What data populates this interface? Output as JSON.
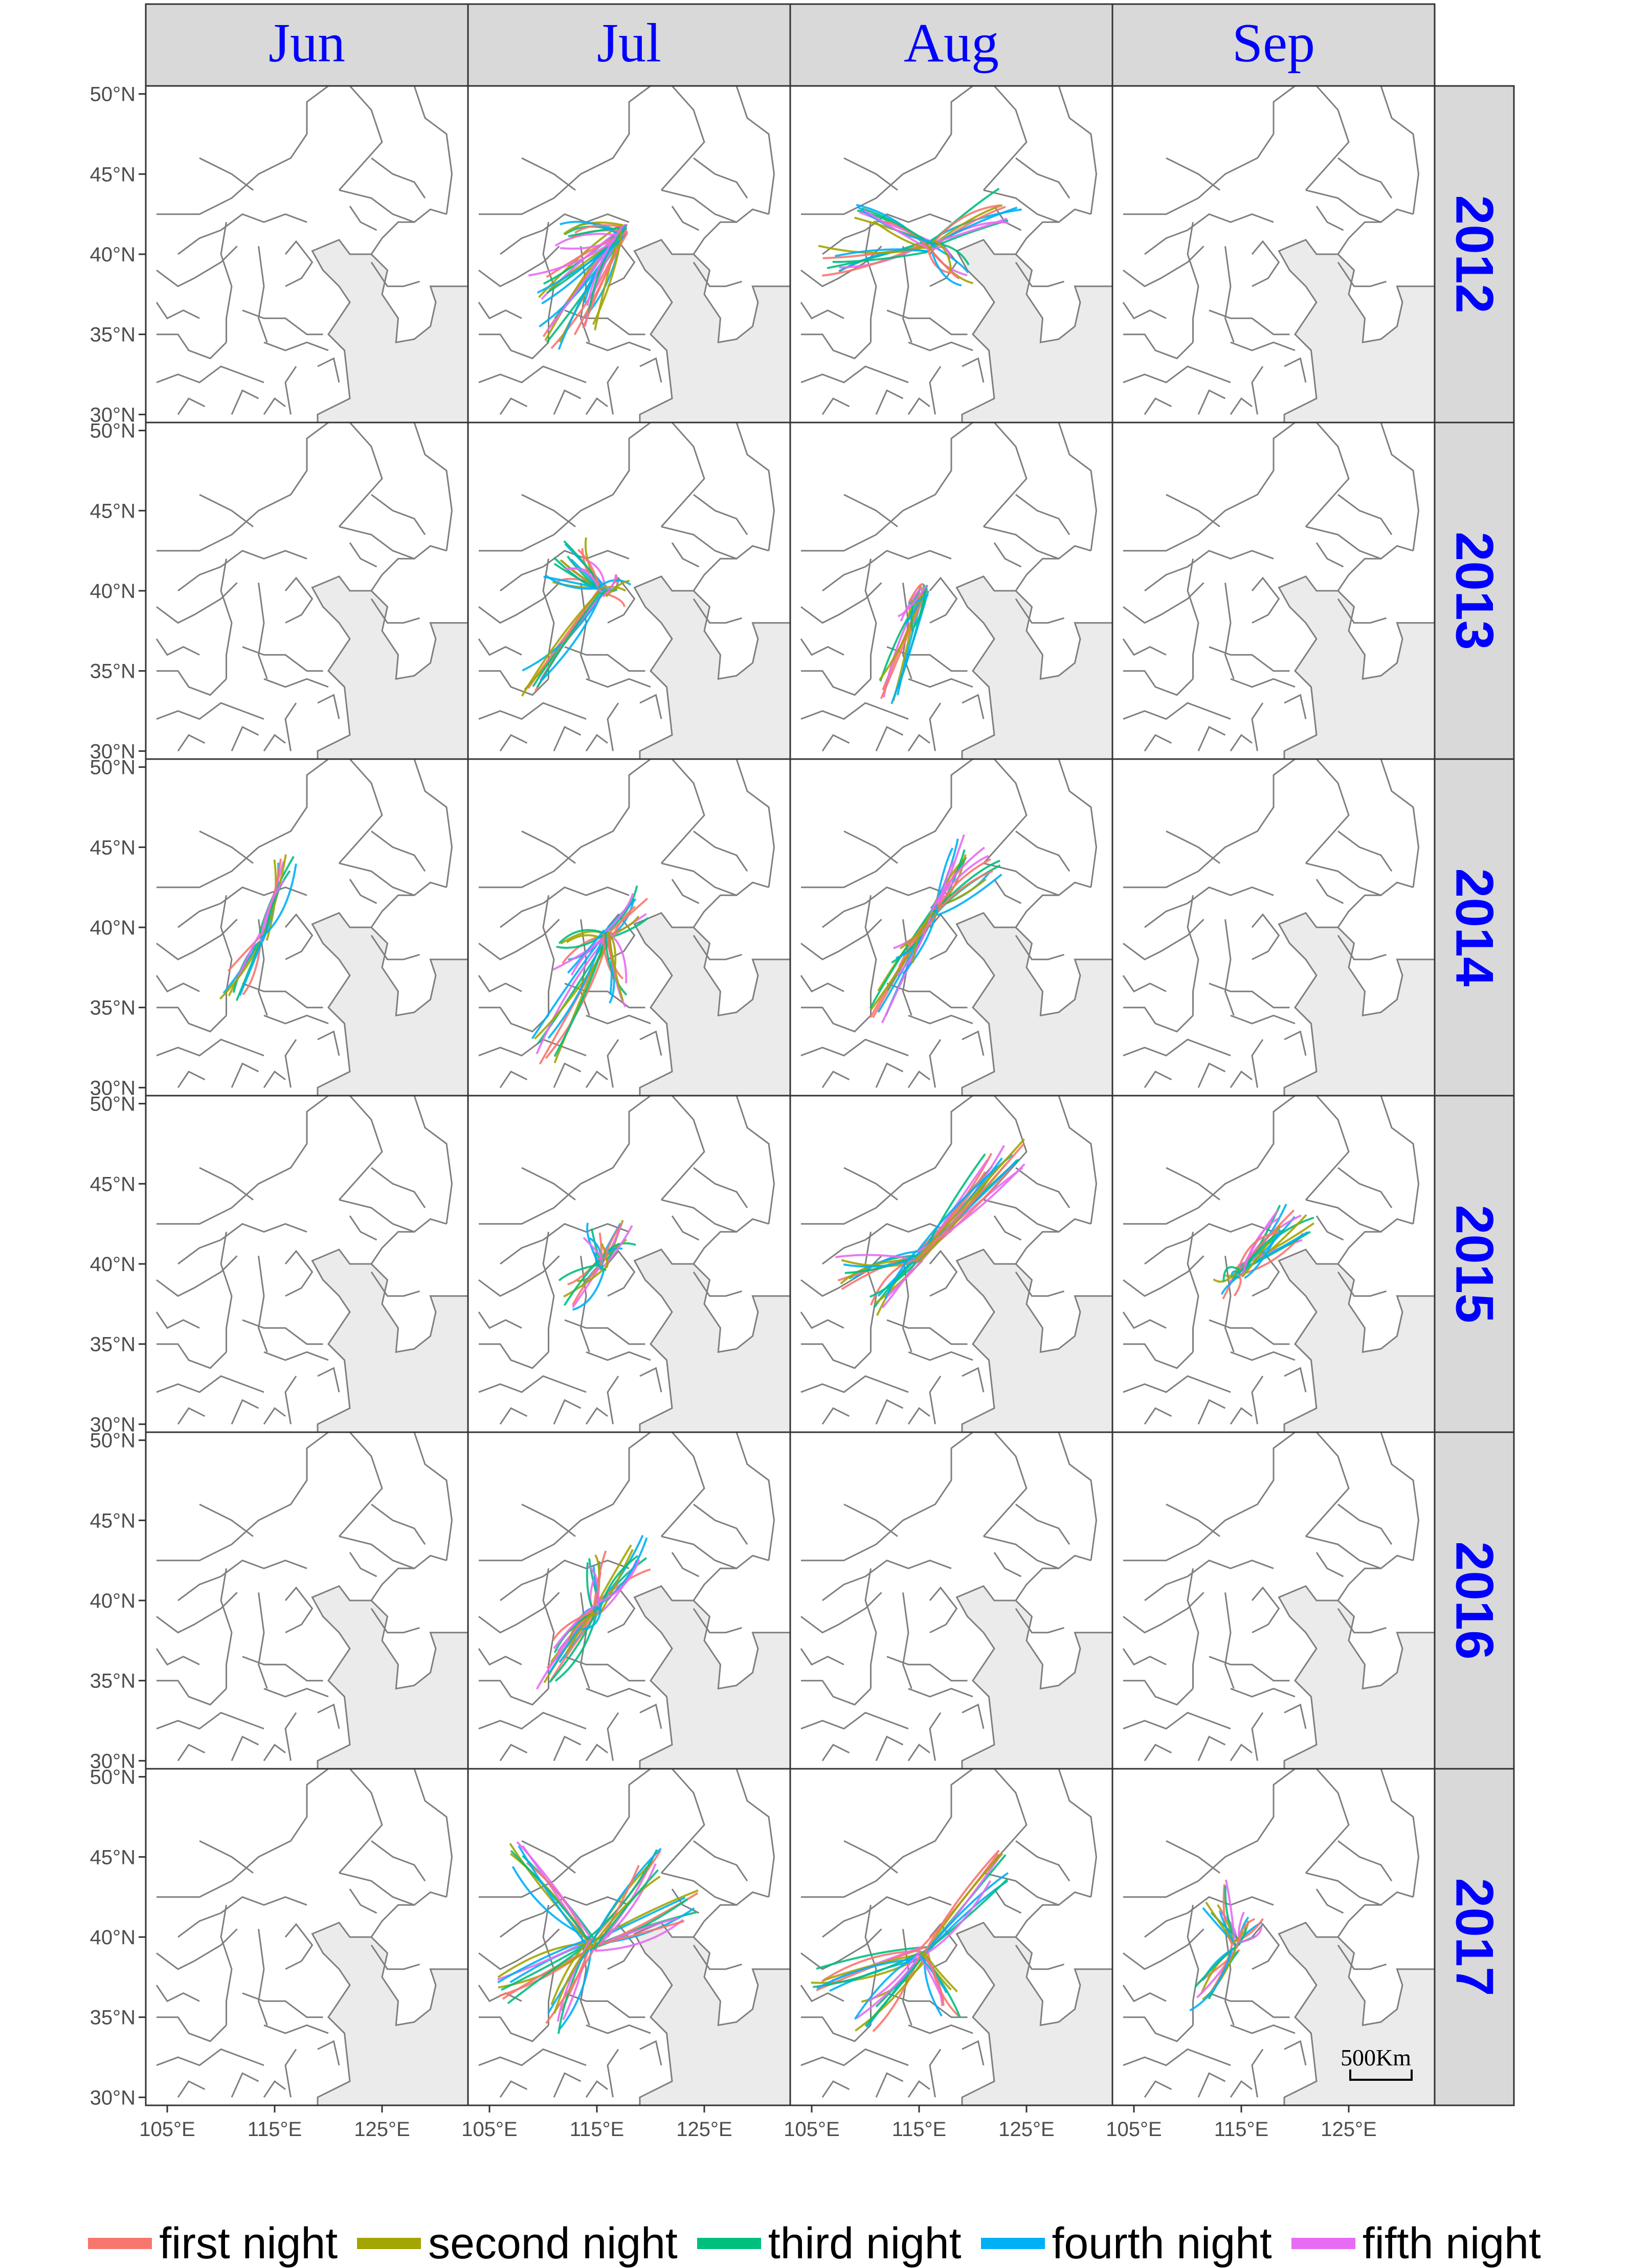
{
  "months": [
    "Jun",
    "Jul",
    "Aug",
    "Sep"
  ],
  "years": [
    "2012",
    "2013",
    "2014",
    "2015",
    "2016",
    "2017"
  ],
  "axes": {
    "x_ticks": [
      "105°E",
      "115°E",
      "125°E"
    ],
    "y_ticks": [
      "50°N",
      "45°N",
      "40°N",
      "35°N",
      "30°N"
    ]
  },
  "scale_bar": "500Km",
  "legend": [
    {
      "label": "first night",
      "color": "#f8766d"
    },
    {
      "label": "second night",
      "color": "#a3a500"
    },
    {
      "label": "third night",
      "color": "#00bf7d"
    },
    {
      "label": "fourth night",
      "color": "#00b0f6"
    },
    {
      "label": "fifth night",
      "color": "#e76bf3"
    }
  ],
  "style": {
    "strip_fill": "#d9d9d9",
    "strip_text_color": "#0000ff",
    "border_color": "#7f7f7f",
    "sea_fill": "#ebebeb"
  },
  "trajectories": {
    "2012": {
      "Jul": {
        "start": [
          117.5,
          41.5
        ],
        "ends": [
          [
            110.5,
            35.0
          ],
          [
            109.5,
            38.0
          ],
          [
            112.0,
            41.0
          ],
          [
            114.0,
            36.0
          ]
        ]
      },
      "Aug": {
        "start": [
          116.0,
          40.5
        ],
        "ends": [
          [
            106.5,
            39.5
          ],
          [
            110.0,
            42.0
          ],
          [
            123.5,
            43.0
          ],
          [
            119.0,
            39.0
          ]
        ]
      }
    },
    "2013": {
      "Jul": {
        "start": [
          115.5,
          40.0
        ],
        "ends": [
          [
            109.0,
            34.5
          ],
          [
            111.0,
            41.5
          ],
          [
            113.0,
            42.5
          ],
          [
            117.5,
            40.0
          ]
        ]
      },
      "Aug": {
        "start": [
          115.5,
          40.0
        ],
        "ends": [
          [
            112.0,
            34.0
          ],
          [
            113.5,
            38.5
          ]
        ]
      }
    },
    "2014": {
      "Jun": {
        "start": [
          114.0,
          39.5
        ],
        "ends": [
          [
            111.0,
            36.5
          ],
          [
            116.0,
            44.0
          ]
        ]
      },
      "Jul": {
        "start": [
          116.0,
          39.5
        ],
        "ends": [
          [
            110.0,
            32.5
          ],
          [
            112.0,
            38.0
          ],
          [
            119.0,
            41.5
          ],
          [
            117.0,
            36.0
          ]
        ]
      },
      "Aug": {
        "start": [
          116.5,
          41.0
        ],
        "ends": [
          [
            111.0,
            35.0
          ],
          [
            119.0,
            45.0
          ],
          [
            122.0,
            44.0
          ],
          [
            113.5,
            38.0
          ]
        ]
      }
    },
    "2015": {
      "Jul": {
        "start": [
          115.5,
          40.0
        ],
        "ends": [
          [
            112.5,
            38.0
          ],
          [
            118.0,
            42.0
          ],
          [
            114.5,
            41.5
          ]
        ]
      },
      "Aug": {
        "start": [
          115.0,
          40.5
        ],
        "ends": [
          [
            108.0,
            39.5
          ],
          [
            111.0,
            37.5
          ],
          [
            122.0,
            46.5
          ],
          [
            124.0,
            47.0
          ]
        ]
      },
      "Sep": {
        "start": [
          115.0,
          39.5
        ],
        "ends": [
          [
            113.5,
            38.5
          ],
          [
            121.0,
            42.5
          ],
          [
            119.0,
            43.0
          ]
        ]
      }
    },
    "2016": {
      "Jul": {
        "start": [
          115.0,
          39.5
        ],
        "ends": [
          [
            110.5,
            35.5
          ],
          [
            119.0,
            43.0
          ],
          [
            115.0,
            42.5
          ],
          [
            112.0,
            37.5
          ]
        ]
      }
    },
    "2017": {
      "Jul": {
        "start": [
          114.5,
          39.5
        ],
        "ends": [
          [
            106.0,
            36.5
          ],
          [
            108.0,
            45.0
          ],
          [
            123.5,
            42.0
          ],
          [
            111.0,
            35.0
          ],
          [
            120.0,
            44.5
          ]
        ]
      },
      "Aug": {
        "start": [
          115.5,
          39.0
        ],
        "ends": [
          [
            106.0,
            37.0
          ],
          [
            110.0,
            35.0
          ],
          [
            122.5,
            44.5
          ],
          [
            118.0,
            36.0
          ]
        ]
      },
      "Sep": {
        "start": [
          114.5,
          39.5
        ],
        "ends": [
          [
            111.0,
            36.5
          ],
          [
            112.5,
            42.5
          ],
          [
            116.0,
            40.5
          ]
        ]
      }
    }
  }
}
